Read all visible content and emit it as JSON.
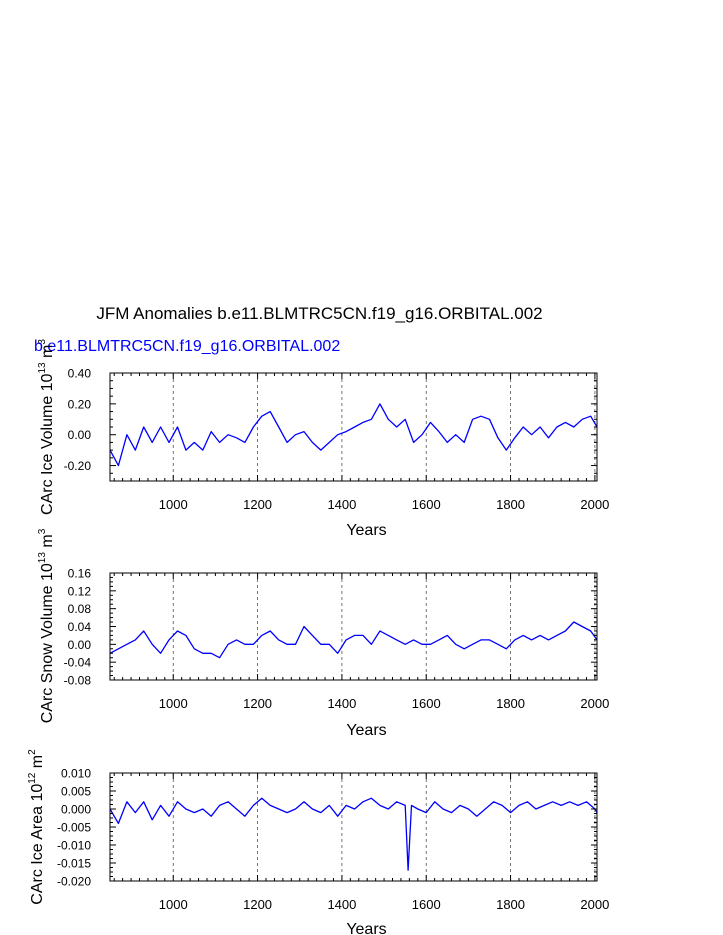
{
  "figure": {
    "title": "JFM Anomalies b.e11.BLMTRC5CN.f19_g16.ORBITAL.002",
    "case_label": "b.e11.BLMTRC5CN.f19_g16.ORBITAL.002",
    "colors": {
      "line": "#0000ff",
      "axis": "#000000",
      "grid": "#555555",
      "case_label": "#0000ff"
    }
  },
  "chart_data": [
    {
      "type": "line",
      "xlabel": "Years",
      "ylabel_main": "CArc Ice Volume 10",
      "ylabel_exp1": "13",
      "ylabel_unit": " m",
      "ylabel_exp2": "3",
      "xlim": [
        850,
        2005
      ],
      "ylim": [
        -0.3,
        0.4
      ],
      "xticks": [
        1000,
        1200,
        1400,
        1600,
        1800,
        2000
      ],
      "xtick_labels": [
        "1000",
        "1200",
        "1400",
        "1600",
        "1800",
        "2000"
      ],
      "yticks": [
        -0.2,
        0.0,
        0.2,
        0.4
      ],
      "ytick_labels": [
        "-0.20",
        "0.00",
        "0.20",
        "0.40"
      ],
      "grid": "vertical dashed at major x ticks",
      "series": [
        {
          "x": [
            850,
            870,
            890,
            910,
            930,
            950,
            970,
            990,
            1010,
            1030,
            1050,
            1070,
            1090,
            1110,
            1130,
            1150,
            1170,
            1190,
            1210,
            1230,
            1250,
            1270,
            1290,
            1310,
            1330,
            1350,
            1370,
            1390,
            1410,
            1430,
            1450,
            1470,
            1490,
            1510,
            1530,
            1550,
            1570,
            1590,
            1610,
            1630,
            1650,
            1670,
            1690,
            1710,
            1730,
            1750,
            1770,
            1790,
            1810,
            1830,
            1850,
            1870,
            1890,
            1910,
            1930,
            1950,
            1970,
            1990,
            2005
          ],
          "y": [
            -0.1,
            -0.2,
            0.0,
            -0.1,
            0.05,
            -0.05,
            0.05,
            -0.05,
            0.05,
            -0.1,
            -0.05,
            -0.1,
            0.02,
            -0.05,
            0.0,
            -0.02,
            -0.05,
            0.05,
            0.12,
            0.15,
            0.05,
            -0.05,
            0.0,
            0.02,
            -0.05,
            -0.1,
            -0.05,
            0.0,
            0.02,
            0.05,
            0.08,
            0.1,
            0.2,
            0.1,
            0.05,
            0.1,
            -0.05,
            0.0,
            0.08,
            0.02,
            -0.05,
            0.0,
            -0.05,
            0.1,
            0.12,
            0.1,
            -0.02,
            -0.1,
            -0.02,
            0.05,
            0.0,
            0.05,
            -0.02,
            0.05,
            0.08,
            0.05,
            0.1,
            0.12,
            0.05
          ]
        }
      ]
    },
    {
      "type": "line",
      "xlabel": "Years",
      "ylabel_main": "CArc Snow Volume 10",
      "ylabel_exp1": "13",
      "ylabel_unit": " m",
      "ylabel_exp2": "3",
      "xlim": [
        850,
        2005
      ],
      "ylim": [
        -0.08,
        0.16
      ],
      "xticks": [
        1000,
        1200,
        1400,
        1600,
        1800,
        2000
      ],
      "xtick_labels": [
        "1000",
        "1200",
        "1400",
        "1600",
        "1800",
        "2000"
      ],
      "yticks": [
        -0.08,
        -0.04,
        0.0,
        0.04,
        0.08,
        0.12,
        0.16
      ],
      "ytick_labels": [
        "-0.08",
        "-0.04",
        "0.00",
        "0.04",
        "0.08",
        "0.12",
        "0.16"
      ],
      "grid": "vertical dashed at major x ticks",
      "series": [
        {
          "x": [
            850,
            870,
            890,
            910,
            930,
            950,
            970,
            990,
            1010,
            1030,
            1050,
            1070,
            1090,
            1110,
            1130,
            1150,
            1170,
            1190,
            1210,
            1230,
            1250,
            1270,
            1290,
            1310,
            1330,
            1350,
            1370,
            1390,
            1410,
            1430,
            1450,
            1470,
            1490,
            1510,
            1530,
            1550,
            1570,
            1590,
            1610,
            1630,
            1650,
            1670,
            1690,
            1710,
            1730,
            1750,
            1770,
            1790,
            1810,
            1830,
            1850,
            1870,
            1890,
            1910,
            1930,
            1950,
            1970,
            1990,
            2005
          ],
          "y": [
            -0.02,
            -0.01,
            0.0,
            0.01,
            0.03,
            0.0,
            -0.02,
            0.01,
            0.03,
            0.02,
            -0.01,
            -0.02,
            -0.02,
            -0.03,
            0.0,
            0.01,
            0.0,
            0.0,
            0.02,
            0.03,
            0.01,
            0.0,
            0.0,
            0.04,
            0.02,
            0.0,
            0.0,
            -0.02,
            0.01,
            0.02,
            0.02,
            0.0,
            0.03,
            0.02,
            0.01,
            0.0,
            0.01,
            0.0,
            0.0,
            0.01,
            0.02,
            0.0,
            -0.01,
            0.0,
            0.01,
            0.01,
            0.0,
            -0.01,
            0.01,
            0.02,
            0.01,
            0.02,
            0.01,
            0.02,
            0.03,
            0.05,
            0.04,
            0.03,
            0.01
          ]
        }
      ]
    },
    {
      "type": "line",
      "xlabel": "Years",
      "ylabel_main": "CArc Ice Area 10",
      "ylabel_exp1": "12",
      "ylabel_unit": " m",
      "ylabel_exp2": "2",
      "xlim": [
        850,
        2005
      ],
      "ylim": [
        -0.02,
        0.01
      ],
      "xticks": [
        1000,
        1200,
        1400,
        1600,
        1800,
        2000
      ],
      "xtick_labels": [
        "1000",
        "1200",
        "1400",
        "1600",
        "1800",
        "2000"
      ],
      "yticks": [
        -0.02,
        -0.015,
        -0.01,
        -0.005,
        0.0,
        0.005,
        0.01
      ],
      "ytick_labels": [
        "-0.020",
        "-0.015",
        "-0.010",
        "-0.005",
        "0.000",
        "0.005",
        "0.010"
      ],
      "grid": "vertical dashed at major x ticks",
      "series": [
        {
          "x": [
            850,
            870,
            890,
            910,
            930,
            950,
            970,
            990,
            1010,
            1030,
            1050,
            1070,
            1090,
            1110,
            1130,
            1150,
            1170,
            1190,
            1210,
            1230,
            1250,
            1270,
            1290,
            1310,
            1330,
            1350,
            1370,
            1390,
            1410,
            1430,
            1450,
            1470,
            1490,
            1510,
            1530,
            1550,
            1557,
            1565,
            1580,
            1600,
            1620,
            1640,
            1660,
            1680,
            1700,
            1720,
            1740,
            1760,
            1780,
            1800,
            1820,
            1840,
            1860,
            1880,
            1900,
            1920,
            1940,
            1960,
            1980,
            2000,
            2005
          ],
          "y": [
            0.0,
            -0.004,
            0.002,
            -0.001,
            0.002,
            -0.003,
            0.001,
            -0.002,
            0.002,
            0.0,
            -0.001,
            0.0,
            -0.002,
            0.001,
            0.002,
            0.0,
            -0.002,
            0.001,
            0.003,
            0.001,
            0.0,
            -0.001,
            0.0,
            0.002,
            0.0,
            -0.001,
            0.001,
            -0.002,
            0.001,
            0.0,
            0.002,
            0.003,
            0.001,
            0.0,
            0.002,
            0.001,
            -0.017,
            0.001,
            0.0,
            -0.001,
            0.002,
            0.0,
            -0.001,
            0.001,
            0.0,
            -0.002,
            0.0,
            0.002,
            0.001,
            -0.001,
            0.001,
            0.002,
            0.0,
            0.001,
            0.002,
            0.001,
            0.002,
            0.001,
            0.002,
            0.0,
            -0.001
          ]
        }
      ]
    }
  ]
}
